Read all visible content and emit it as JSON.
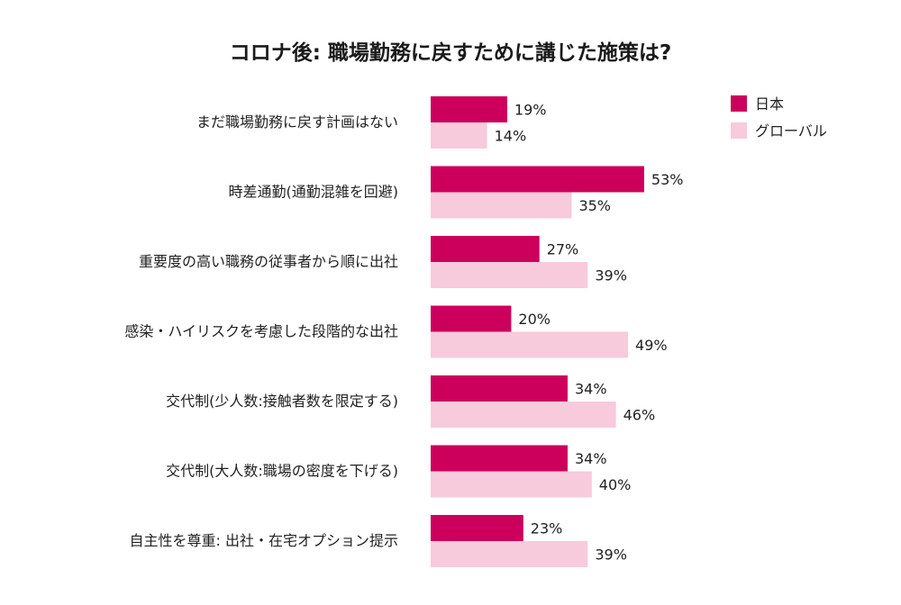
{
  "chart_data": {
    "type": "bar",
    "orientation": "horizontal",
    "title": "コロナ後: 職場勤務に戻すために講じた施策は?",
    "xlabel": "",
    "ylabel": "",
    "categories": [
      "まだ職場勤務に戻す計画はない",
      "時差通勤(通勤混雑を回避)",
      "重要度の高い職務の従事者から順に出社",
      "感染・ハイリスクを考慮した段階的な出社",
      "交代制(少人数:接触者数を限定する)",
      "交代制(大人数:職場の密度を下げる)",
      "自主性を尊重: 出社・在宅オプション提示"
    ],
    "series": [
      {
        "name": "日本",
        "color": "#cc005c",
        "values": [
          19,
          53,
          27,
          20,
          34,
          34,
          23
        ]
      },
      {
        "name": "グローバル",
        "color": "#f7cadc",
        "values": [
          14,
          35,
          39,
          49,
          46,
          40,
          39
        ]
      }
    ],
    "value_suffix": "%",
    "xlim": [
      0,
      100
    ],
    "grid": false,
    "legend_position": "top-right"
  }
}
